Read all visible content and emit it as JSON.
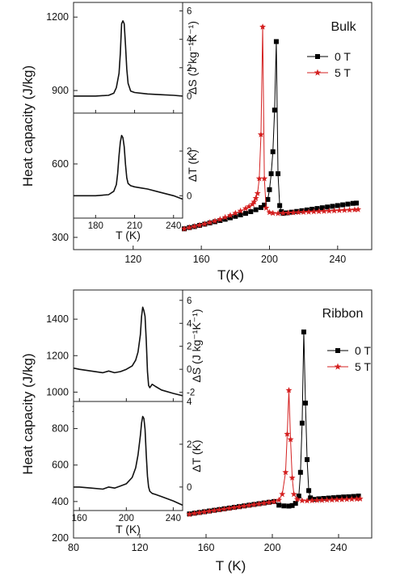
{
  "chart_data": [
    {
      "panel": "Bulk",
      "main": {
        "type": "scatter",
        "ylabel": "Heat capacity (J/kg)",
        "xlabel": "T(K)",
        "xlim": [
          85,
          260
        ],
        "ylim": [
          250,
          1260
        ],
        "xticks": [
          120,
          160,
          200,
          240
        ],
        "yticks": [
          300,
          600,
          900,
          1200
        ],
        "series": [
          {
            "name": "0 T",
            "color": "#000000",
            "marker": "square",
            "x": [
              150,
              153,
              156,
              159,
              162,
              165,
              168,
              171,
              174,
              177,
              180,
              183,
              186,
              189,
              192,
              195,
              197,
              199,
              200,
              201,
              202,
              203,
              204,
              205,
              206,
              207,
              208,
              210,
              213,
              216,
              219,
              222,
              225,
              228,
              231,
              234,
              237,
              240,
              243,
              246,
              249,
              251
            ],
            "y": [
              335,
              340,
              344,
              349,
              354,
              359,
              364,
              369,
              374,
              380,
              386,
              392,
              398,
              405,
              413,
              422,
              432,
              455,
              495,
              560,
              650,
              820,
              1100,
              560,
              430,
              405,
              398,
              400,
              403,
              406,
              409,
              412,
              415,
              418,
              421,
              424,
              427,
              430,
              433,
              436,
              439,
              440
            ]
          },
          {
            "name": "5 T",
            "color": "#d42020",
            "marker": "star",
            "x": [
              150,
              153,
              156,
              159,
              162,
              165,
              168,
              171,
              174,
              177,
              180,
              183,
              186,
              188,
              190,
              191,
              192,
              193,
              194,
              195,
              196,
              197,
              198,
              200,
              202,
              205,
              208,
              211,
              214,
              217,
              220,
              223,
              226,
              229,
              232,
              235,
              238,
              241,
              244,
              247,
              250,
              252
            ],
            "y": [
              335,
              340,
              345,
              350,
              355,
              361,
              367,
              374,
              382,
              390,
              399,
              408,
              418,
              426,
              435,
              445,
              460,
              480,
              540,
              720,
              1160,
              540,
              420,
              402,
              399,
              398,
              399,
              400,
              401,
              402,
              403,
              404,
              405,
              406,
              407,
              408,
              409,
              410,
              411,
              412,
              413,
              414
            ]
          }
        ]
      },
      "insets": [
        {
          "type": "line",
          "ylabel": "ΔS (J kg⁻¹K⁻¹)",
          "xlim": [
            163,
            247
          ],
          "ylim": [
            -1.2,
            6.6
          ],
          "xticks": [
            180,
            210,
            240
          ],
          "yticks": [
            0,
            2,
            4,
            6
          ],
          "series": [
            {
              "x": [
                163,
                170,
                180,
                190,
                194,
                196,
                198,
                199,
                200,
                201,
                202,
                203,
                204,
                205,
                207,
                210,
                215,
                220,
                230,
                240,
                247
              ],
              "y": [
                0.0,
                0.0,
                0.0,
                0.05,
                0.2,
                0.6,
                1.6,
                3.0,
                5.1,
                5.3,
                5.1,
                3.6,
                1.9,
                0.9,
                0.35,
                0.25,
                0.2,
                0.15,
                0.1,
                0.05,
                0.0
              ]
            }
          ]
        },
        {
          "type": "line",
          "ylabel": "ΔT (K)",
          "xlabel": "T (K)",
          "xlim": [
            163,
            247
          ],
          "ylim": [
            -1.0,
            3.7
          ],
          "xticks": [
            180,
            210,
            240
          ],
          "yticks": [
            0,
            2
          ],
          "series": [
            {
              "x": [
                163,
                170,
                180,
                190,
                194,
                196,
                197,
                198,
                199,
                200,
                201,
                202,
                203,
                204,
                205,
                207,
                210,
                215,
                220,
                230,
                240,
                247
              ],
              "y": [
                0.0,
                0.0,
                0.0,
                0.05,
                0.2,
                0.5,
                1.0,
                1.8,
                2.4,
                2.7,
                2.6,
                2.2,
                1.4,
                0.8,
                0.55,
                0.45,
                0.4,
                0.35,
                0.3,
                0.15,
                0.0,
                -0.15
              ]
            }
          ]
        }
      ],
      "legend": [
        "0 T",
        "5 T"
      ]
    },
    {
      "panel": "Ribbon",
      "main": {
        "type": "scatter",
        "ylabel": "Heat capacity (J/kg)",
        "xlabel": "T (K)",
        "xlim": [
          80,
          260
        ],
        "ylim": [
          200,
          1560
        ],
        "xticks": [
          80,
          120,
          160,
          200,
          240
        ],
        "yticks": [
          200,
          400,
          600,
          800,
          1000,
          1200,
          1400
        ],
        "series": [
          {
            "name": "0 T",
            "color": "#000000",
            "marker": "square",
            "x": [
              150,
              153,
              156,
              159,
              162,
              165,
              168,
              171,
              174,
              177,
              180,
              183,
              186,
              189,
              192,
              195,
              198,
              201,
              204,
              207,
              210,
              212,
              214,
              216,
              217,
              218,
              219,
              220,
              221,
              222,
              223,
              225,
              228,
              231,
              234,
              237,
              240,
              243,
              246,
              249,
              252
            ],
            "y": [
              332,
              336,
              340,
              344,
              348,
              352,
              356,
              360,
              364,
              368,
              372,
              376,
              380,
              384,
              388,
              392,
              396,
              400,
              380,
              376,
              375,
              378,
              390,
              430,
              560,
              830,
              1330,
              940,
              630,
              460,
              420,
              412,
              415,
              417,
              419,
              421,
              423,
              425,
              426,
              428,
              430
            ]
          },
          {
            "name": "5 T",
            "color": "#d42020",
            "marker": "star",
            "x": [
              150,
              153,
              156,
              159,
              162,
              165,
              168,
              171,
              174,
              177,
              180,
              183,
              186,
              189,
              192,
              195,
              198,
              201,
              204,
              206,
              208,
              209,
              210,
              211,
              212,
              213,
              215,
              218,
              221,
              224,
              227,
              230,
              233,
              236,
              239,
              242,
              245,
              248,
              251,
              253
            ],
            "y": [
              330,
              335,
              339,
              343,
              347,
              351,
              355,
              359,
              363,
              367,
              371,
              375,
              379,
              383,
              387,
              391,
              395,
              399,
              408,
              440,
              560,
              770,
              1010,
              740,
              530,
              440,
              412,
              405,
              404,
              405,
              406,
              407,
              408,
              409,
              410,
              411,
              412,
              413,
              414,
              415
            ]
          }
        ]
      },
      "insets": [
        {
          "type": "line",
          "ylabel": "ΔS (J kg⁻¹K⁻¹)",
          "xlim": [
            155,
            248
          ],
          "ylim": [
            -2.8,
            6.9
          ],
          "xticks": [
            160,
            200,
            240
          ],
          "yticks": [
            -2,
            0,
            2,
            4,
            6
          ],
          "series": [
            {
              "x": [
                155,
                160,
                170,
                180,
                185,
                190,
                195,
                200,
                205,
                208,
                210,
                212,
                213,
                214,
                215,
                216,
                217,
                218,
                219,
                220,
                222,
                225,
                230,
                240,
                248
              ],
              "y": [
                0.1,
                0.0,
                -0.15,
                -0.3,
                -0.15,
                -0.3,
                -0.2,
                0.0,
                0.3,
                0.8,
                1.5,
                3.0,
                4.6,
                5.4,
                5.1,
                4.6,
                2.5,
                -0.2,
                -1.4,
                -1.6,
                -1.3,
                -1.5,
                -1.8,
                -2.1,
                -2.3
              ]
            }
          ]
        },
        {
          "type": "line",
          "ylabel": "ΔT (K)",
          "xlabel": "T (K)",
          "xlim": [
            155,
            248
          ],
          "ylim": [
            -1.1,
            4.0
          ],
          "xticks": [
            160,
            200,
            240
          ],
          "yticks": [
            0,
            2,
            4
          ],
          "series": [
            {
              "x": [
                155,
                160,
                170,
                180,
                185,
                190,
                195,
                200,
                205,
                208,
                210,
                212,
                213,
                214,
                215,
                216,
                217,
                218,
                219,
                220,
                222,
                225,
                230,
                240,
                248
              ],
              "y": [
                0.0,
                0.0,
                -0.05,
                -0.1,
                0.0,
                -0.05,
                0.05,
                0.15,
                0.45,
                0.9,
                1.5,
                2.4,
                3.0,
                3.3,
                3.2,
                2.7,
                1.5,
                0.5,
                0.0,
                -0.2,
                -0.3,
                -0.35,
                -0.45,
                -0.65,
                -0.85
              ]
            }
          ]
        }
      ],
      "legend": [
        "0 T",
        "5 T"
      ]
    }
  ]
}
